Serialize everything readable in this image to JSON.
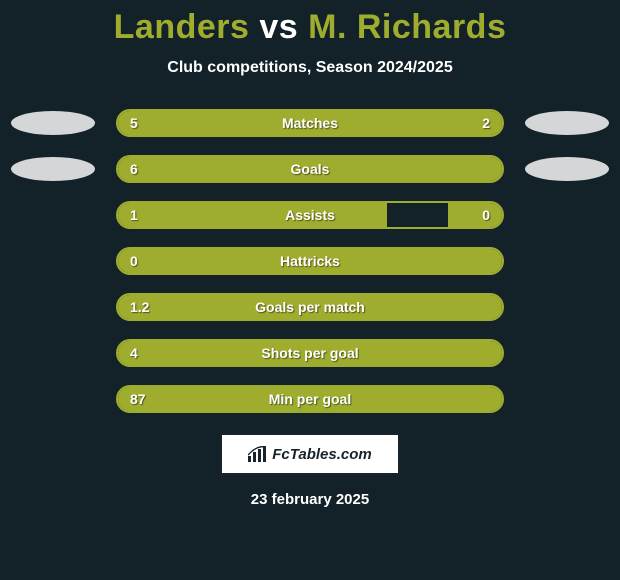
{
  "title": {
    "p1": "Landers",
    "vs": "vs",
    "p2": "M. Richards"
  },
  "subtitle": "Club competitions, Season 2024/2025",
  "colors": {
    "background": "#132129",
    "accent": "#9fad2f",
    "text": "#ffffff",
    "shape": "#d4d6d7",
    "badge_bg": "#ffffff",
    "badge_text": "#18232c"
  },
  "rows": [
    {
      "label": "Matches",
      "left_val": "5",
      "right_val": "2",
      "fill_left_pct": 71,
      "fill_right_pct": 29,
      "show_left_shape": true,
      "show_right_shape": true
    },
    {
      "label": "Goals",
      "left_val": "6",
      "right_val": "",
      "fill_left_pct": 100,
      "fill_right_pct": 0,
      "show_left_shape": true,
      "show_right_shape": true
    },
    {
      "label": "Assists",
      "left_val": "1",
      "right_val": "0",
      "fill_left_pct": 70,
      "fill_right_pct": 14,
      "show_left_shape": false,
      "show_right_shape": false
    },
    {
      "label": "Hattricks",
      "left_val": "0",
      "right_val": "",
      "fill_left_pct": 100,
      "fill_right_pct": 0,
      "show_left_shape": false,
      "show_right_shape": false
    },
    {
      "label": "Goals per match",
      "left_val": "1.2",
      "right_val": "",
      "fill_left_pct": 100,
      "fill_right_pct": 0,
      "show_left_shape": false,
      "show_right_shape": false
    },
    {
      "label": "Shots per goal",
      "left_val": "4",
      "right_val": "",
      "fill_left_pct": 100,
      "fill_right_pct": 0,
      "show_left_shape": false,
      "show_right_shape": false
    },
    {
      "label": "Min per goal",
      "left_val": "87",
      "right_val": "",
      "fill_left_pct": 100,
      "fill_right_pct": 0,
      "show_left_shape": false,
      "show_right_shape": false
    }
  ],
  "badge_text": "FcTables.com",
  "footer_date": "23 february 2025"
}
